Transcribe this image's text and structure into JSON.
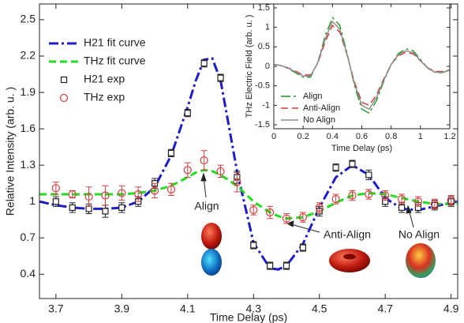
{
  "chart_data": [
    {
      "type": "line",
      "xlabel": "Time Delay (ps)",
      "ylabel": "Relative Intensity (arb. u. )",
      "xlim": [
        3.65,
        4.92
      ],
      "ylim": [
        0.2,
        2.63
      ],
      "xticks": [
        3.7,
        3.9,
        4.1,
        4.3,
        4.5,
        4.7,
        4.9
      ],
      "yticks": [
        0.4,
        0.7,
        1.0,
        1.3,
        1.6,
        1.9,
        2.2,
        2.5
      ],
      "legend": "upper left",
      "grid": false,
      "series": [
        {
          "name": "H21 fit curve",
          "color": "#1c1cc8",
          "style": "dashdot",
          "x": [
            3.65,
            3.7,
            3.75,
            3.8,
            3.85,
            3.9,
            3.95,
            4.0,
            4.05,
            4.1,
            4.125,
            4.15,
            4.175,
            4.2,
            4.25,
            4.3,
            4.35,
            4.375,
            4.4,
            4.45,
            4.5,
            4.55,
            4.6,
            4.65,
            4.7,
            4.75,
            4.8,
            4.85,
            4.9,
            4.92
          ],
          "values": [
            1.0,
            0.97,
            0.95,
            0.94,
            0.94,
            0.95,
            1.0,
            1.12,
            1.38,
            1.78,
            2.0,
            2.17,
            2.18,
            2.0,
            1.25,
            0.66,
            0.45,
            0.44,
            0.47,
            0.65,
            0.95,
            1.2,
            1.3,
            1.22,
            1.03,
            0.94,
            0.93,
            0.96,
            0.99,
            1.0
          ]
        },
        {
          "name": "THz fit curve",
          "color": "#22dd22",
          "style": "dashed",
          "x": [
            3.65,
            3.7,
            3.75,
            3.8,
            3.85,
            3.9,
            3.95,
            4.0,
            4.05,
            4.1,
            4.125,
            4.15,
            4.175,
            4.2,
            4.25,
            4.3,
            4.35,
            4.375,
            4.4,
            4.45,
            4.5,
            4.55,
            4.6,
            4.65,
            4.7,
            4.75,
            4.8,
            4.85,
            4.9,
            4.92
          ],
          "values": [
            1.06,
            1.06,
            1.06,
            1.06,
            1.06,
            1.06,
            1.07,
            1.09,
            1.13,
            1.2,
            1.24,
            1.26,
            1.25,
            1.22,
            1.13,
            1.0,
            0.91,
            0.88,
            0.86,
            0.87,
            0.92,
            0.99,
            1.05,
            1.07,
            1.06,
            1.03,
            1.0,
            0.98,
            0.98,
            0.99
          ]
        },
        {
          "name": "H21 exp",
          "color": "#222222",
          "style": "square",
          "x": [
            3.7,
            3.75,
            3.8,
            3.85,
            3.9,
            3.95,
            4.0,
            4.05,
            4.1,
            4.15,
            4.2,
            4.25,
            4.3,
            4.35,
            4.4,
            4.45,
            4.5,
            4.55,
            4.6,
            4.65,
            4.7,
            4.75,
            4.8,
            4.85,
            4.9
          ],
          "values": [
            1.0,
            0.95,
            0.94,
            0.92,
            0.95,
            1.0,
            1.15,
            1.4,
            1.73,
            2.14,
            2.02,
            1.2,
            0.64,
            0.47,
            0.47,
            0.62,
            0.92,
            1.28,
            1.31,
            1.22,
            1.0,
            0.95,
            0.95,
            0.97,
            1.0
          ],
          "errors": [
            0.04,
            0.04,
            0.04,
            0.05,
            0.04,
            0.04,
            0.04,
            0.03,
            0.03,
            0.03,
            0.03,
            0.05,
            0.03,
            0.03,
            0.03,
            0.03,
            0.04,
            0.03,
            0.03,
            0.04,
            0.04,
            0.04,
            0.04,
            0.04,
            0.04
          ]
        },
        {
          "name": "THz exp",
          "color": "#d04040",
          "style": "circle",
          "x": [
            3.7,
            3.75,
            3.8,
            3.85,
            3.9,
            3.95,
            4.0,
            4.05,
            4.1,
            4.15,
            4.2,
            4.25,
            4.3,
            4.35,
            4.4,
            4.45,
            4.5,
            4.55,
            4.6,
            4.65,
            4.7,
            4.75,
            4.8,
            4.85,
            4.9
          ],
          "values": [
            1.11,
            1.06,
            1.04,
            1.05,
            1.07,
            1.06,
            1.09,
            1.1,
            1.26,
            1.34,
            1.25,
            1.16,
            0.93,
            0.91,
            0.86,
            0.87,
            0.95,
            1.02,
            1.05,
            1.06,
            1.05,
            1.02,
            1.0,
            0.98,
            1.01
          ],
          "errors": [
            0.05,
            0.03,
            0.08,
            0.08,
            0.06,
            0.06,
            0.06,
            0.05,
            0.06,
            0.08,
            0.05,
            0.08,
            0.04,
            0.05,
            0.04,
            0.04,
            0.04,
            0.04,
            0.04,
            0.04,
            0.04,
            0.04,
            0.04,
            0.04,
            0.04
          ]
        }
      ],
      "annotations": [
        "Align",
        "Anti-Align",
        "No Align"
      ]
    },
    {
      "type": "line",
      "xlabel": "Time Delay (ps)",
      "ylabel": "THz Electric Field (arb. u. )",
      "xlim": [
        0,
        1.2
      ],
      "ylim": [
        -1.6,
        1.6
      ],
      "xticks": [
        0,
        0.2,
        0.4,
        0.6,
        0.8,
        1,
        1.2
      ],
      "yticks": [
        -1.5,
        -1,
        -0.5,
        0,
        0.5,
        1,
        1.5
      ],
      "legend": "lower left",
      "grid": false,
      "series": [
        {
          "name": "Align",
          "color": "#1f9a1f",
          "style": "dashdot",
          "x": [
            0,
            0.05,
            0.1,
            0.15,
            0.2,
            0.25,
            0.3,
            0.35,
            0.4,
            0.45,
            0.5,
            0.55,
            0.6,
            0.65,
            0.7,
            0.75,
            0.8,
            0.85,
            0.9,
            0.95,
            1,
            1.05,
            1.1,
            1.15,
            1.2
          ],
          "values": [
            0.05,
            0.02,
            -0.06,
            -0.17,
            -0.28,
            -0.28,
            0.1,
            0.78,
            1.25,
            1.05,
            0.33,
            -0.5,
            -1.1,
            -1.2,
            -0.88,
            -0.38,
            0.05,
            0.33,
            0.45,
            0.4,
            0.18,
            -0.05,
            -0.16,
            -0.16,
            -0.1
          ]
        },
        {
          "name": "Anti-Align",
          "color": "#d63a3a",
          "style": "dashed",
          "x": [
            0,
            0.05,
            0.1,
            0.15,
            0.2,
            0.25,
            0.3,
            0.35,
            0.4,
            0.45,
            0.5,
            0.55,
            0.6,
            0.65,
            0.7,
            0.75,
            0.8,
            0.85,
            0.9,
            0.95,
            1,
            1.05,
            1.1,
            1.15,
            1.2
          ],
          "values": [
            0.05,
            0.02,
            -0.04,
            -0.13,
            -0.22,
            -0.22,
            0.08,
            0.62,
            1.05,
            0.88,
            0.28,
            -0.4,
            -0.92,
            -1.0,
            -0.73,
            -0.32,
            0.05,
            0.27,
            0.36,
            0.32,
            0.14,
            -0.04,
            -0.13,
            -0.13,
            -0.09
          ]
        },
        {
          "name": "No Align",
          "color": "#8a8a8a",
          "style": "solid",
          "x": [
            0,
            0.05,
            0.1,
            0.15,
            0.2,
            0.25,
            0.3,
            0.35,
            0.4,
            0.45,
            0.5,
            0.55,
            0.6,
            0.65,
            0.7,
            0.75,
            0.8,
            0.85,
            0.9,
            0.95,
            1,
            1.05,
            1.1,
            1.15,
            1.2
          ],
          "values": [
            0.05,
            0.02,
            -0.05,
            -0.15,
            -0.25,
            -0.25,
            0.1,
            0.7,
            1.15,
            0.95,
            0.3,
            -0.45,
            -1.0,
            -1.1,
            -0.8,
            -0.35,
            0.05,
            0.3,
            0.4,
            0.35,
            0.15,
            -0.05,
            -0.15,
            -0.15,
            -0.1
          ]
        }
      ]
    }
  ]
}
